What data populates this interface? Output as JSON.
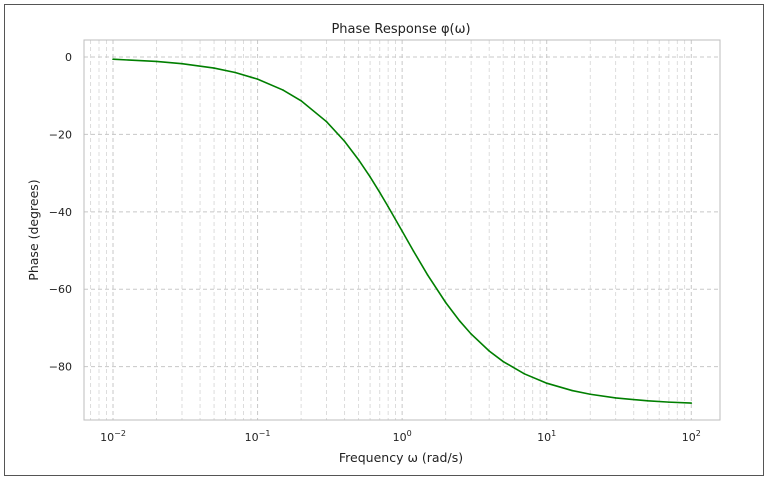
{
  "chart_data": {
    "type": "line",
    "title": "Phase Response φ(ω)",
    "xlabel": "Frequency ω (rad/s)",
    "ylabel": "Phase (degrees)",
    "x_scale": "log",
    "xlim": [
      0.0063,
      158
    ],
    "ylim": [
      -93.8,
      4.4
    ],
    "x_ticks": [
      {
        "value": 0.01,
        "base": "10",
        "exp": "−2"
      },
      {
        "value": 0.1,
        "base": "10",
        "exp": "−1"
      },
      {
        "value": 1,
        "base": "10",
        "exp": "0"
      },
      {
        "value": 10,
        "base": "10",
        "exp": "1"
      },
      {
        "value": 100,
        "base": "10",
        "exp": "2"
      }
    ],
    "y_ticks": [
      {
        "value": 0,
        "label": "0"
      },
      {
        "value": -20,
        "label": "−20"
      },
      {
        "value": -40,
        "label": "−40"
      },
      {
        "value": -60,
        "label": "−60"
      },
      {
        "value": -80,
        "label": "−80"
      }
    ],
    "grid": true,
    "series": [
      {
        "color": "#007f00",
        "x": [
          0.01,
          0.02,
          0.03,
          0.05,
          0.07,
          0.1,
          0.15,
          0.2,
          0.3,
          0.4,
          0.5,
          0.6,
          0.7,
          0.8,
          1,
          1.2,
          1.5,
          2,
          2.5,
          3,
          4,
          5,
          7,
          10,
          15,
          20,
          30,
          50,
          70,
          100
        ],
        "y": [
          -0.57,
          -1.15,
          -1.72,
          -2.86,
          -4.0,
          -5.71,
          -8.53,
          -11.31,
          -16.7,
          -21.8,
          -26.57,
          -30.96,
          -34.99,
          -38.66,
          -45.0,
          -50.19,
          -56.31,
          -63.43,
          -68.2,
          -71.57,
          -75.96,
          -78.69,
          -81.87,
          -84.29,
          -86.19,
          -87.14,
          -88.09,
          -88.85,
          -89.18,
          -89.43
        ]
      }
    ]
  }
}
